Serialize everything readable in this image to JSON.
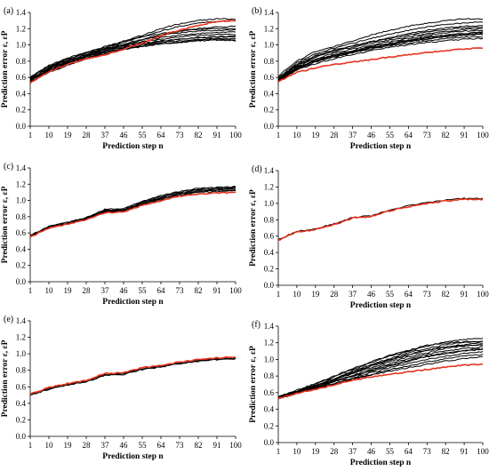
{
  "colors": {
    "highlight": "#e8321e",
    "others": "#000000",
    "axis": "#000000"
  },
  "chart_data": [
    {
      "type": "line",
      "panel_label": "(a)",
      "xlabel": "Prediction step n",
      "ylabel": "Prediction error ε, εP",
      "ylim": [
        0,
        1.4
      ],
      "yticks": [
        "0.0",
        "0.2",
        "0.4",
        "0.6",
        "0.8",
        "1.0",
        "1.2",
        "1.4"
      ],
      "xlim": [
        1,
        100
      ],
      "xticks": [
        "1",
        "10",
        "19",
        "28",
        "37",
        "46",
        "55",
        "64",
        "73",
        "82",
        "91",
        "100"
      ],
      "grid": false,
      "x": [
        1,
        10,
        19,
        28,
        37,
        46,
        55,
        64,
        73,
        82,
        91,
        100
      ],
      "highlight": [
        0.53,
        0.67,
        0.76,
        0.83,
        0.88,
        0.95,
        1.02,
        1.11,
        1.18,
        1.24,
        1.29,
        1.3
      ],
      "series": [
        {
          "values": [
            0.6,
            0.75,
            0.84,
            0.91,
            0.97,
            1.05,
            1.12,
            1.2,
            1.26,
            1.3,
            1.32,
            1.32
          ]
        },
        {
          "values": [
            0.58,
            0.72,
            0.82,
            0.9,
            0.96,
            1.03,
            1.1,
            1.17,
            1.23,
            1.27,
            1.29,
            1.3
          ]
        },
        {
          "values": [
            0.57,
            0.7,
            0.79,
            0.87,
            0.94,
            1.0,
            1.06,
            1.12,
            1.17,
            1.2,
            1.22,
            1.23
          ]
        },
        {
          "values": [
            0.59,
            0.71,
            0.8,
            0.88,
            0.95,
            1.0,
            1.04,
            1.07,
            1.1,
            1.12,
            1.13,
            1.13
          ]
        },
        {
          "values": [
            0.57,
            0.69,
            0.78,
            0.86,
            0.93,
            0.98,
            1.02,
            1.05,
            1.07,
            1.09,
            1.1,
            1.1
          ]
        },
        {
          "values": [
            0.56,
            0.68,
            0.77,
            0.85,
            0.91,
            0.96,
            1.0,
            1.03,
            1.05,
            1.07,
            1.08,
            1.08
          ]
        },
        {
          "values": [
            0.55,
            0.67,
            0.76,
            0.84,
            0.9,
            0.95,
            0.99,
            1.02,
            1.04,
            1.06,
            1.07,
            1.06
          ]
        },
        {
          "values": [
            0.54,
            0.66,
            0.75,
            0.83,
            0.89,
            0.94,
            0.98,
            1.01,
            1.03,
            1.05,
            1.06,
            1.05
          ]
        },
        {
          "values": [
            0.6,
            0.73,
            0.81,
            0.88,
            0.95,
            1.01,
            1.07,
            1.12,
            1.15,
            1.17,
            1.18,
            1.18
          ]
        },
        {
          "values": [
            0.61,
            0.74,
            0.83,
            0.9,
            0.98,
            1.04,
            1.1,
            1.14,
            1.17,
            1.19,
            1.2,
            1.2
          ]
        },
        {
          "values": [
            0.58,
            0.71,
            0.8,
            0.87,
            0.93,
            0.99,
            1.04,
            1.09,
            1.12,
            1.14,
            1.15,
            1.16
          ]
        },
        {
          "values": [
            0.56,
            0.69,
            0.78,
            0.86,
            0.92,
            0.97,
            1.01,
            1.04,
            1.07,
            1.09,
            1.1,
            1.11
          ]
        }
      ]
    },
    {
      "type": "line",
      "panel_label": "(b)",
      "xlabel": "Prediction step n",
      "ylabel": "Prediction error ε, εP",
      "ylim": [
        0,
        1.4
      ],
      "yticks": [
        "0.0",
        "0.2",
        "0.4",
        "0.6",
        "0.8",
        "1.0",
        "1.2",
        "1.4"
      ],
      "xlim": [
        1,
        100
      ],
      "xticks": [
        "1",
        "10",
        "19",
        "28",
        "37",
        "46",
        "55",
        "64",
        "73",
        "82",
        "91",
        "100"
      ],
      "grid": false,
      "x": [
        1,
        10,
        19,
        28,
        37,
        46,
        55,
        64,
        73,
        82,
        91,
        100
      ],
      "highlight": [
        0.55,
        0.66,
        0.72,
        0.76,
        0.79,
        0.82,
        0.85,
        0.88,
        0.91,
        0.93,
        0.95,
        0.96
      ],
      "series": [
        {
          "values": [
            0.62,
            0.8,
            0.92,
            0.98,
            1.05,
            1.12,
            1.18,
            1.23,
            1.27,
            1.3,
            1.32,
            1.32
          ]
        },
        {
          "values": [
            0.6,
            0.78,
            0.89,
            0.96,
            1.02,
            1.08,
            1.13,
            1.18,
            1.22,
            1.25,
            1.27,
            1.28
          ]
        },
        {
          "values": [
            0.59,
            0.76,
            0.87,
            0.94,
            0.99,
            1.04,
            1.09,
            1.14,
            1.18,
            1.21,
            1.23,
            1.24
          ]
        },
        {
          "values": [
            0.58,
            0.74,
            0.85,
            0.92,
            0.97,
            1.02,
            1.06,
            1.1,
            1.14,
            1.17,
            1.19,
            1.2
          ]
        },
        {
          "values": [
            0.57,
            0.73,
            0.83,
            0.9,
            0.95,
            1.0,
            1.04,
            1.08,
            1.12,
            1.15,
            1.17,
            1.18
          ]
        },
        {
          "values": [
            0.56,
            0.72,
            0.81,
            0.88,
            0.93,
            0.98,
            1.02,
            1.06,
            1.1,
            1.12,
            1.14,
            1.15
          ]
        },
        {
          "values": [
            0.56,
            0.71,
            0.8,
            0.86,
            0.91,
            0.96,
            1.0,
            1.04,
            1.07,
            1.1,
            1.12,
            1.13
          ]
        },
        {
          "values": [
            0.55,
            0.7,
            0.79,
            0.85,
            0.9,
            0.95,
            0.99,
            1.02,
            1.05,
            1.08,
            1.1,
            1.1
          ]
        },
        {
          "values": [
            0.57,
            0.72,
            0.81,
            0.87,
            0.92,
            0.97,
            1.01,
            1.05,
            1.08,
            1.11,
            1.13,
            1.14
          ]
        },
        {
          "values": [
            0.58,
            0.75,
            0.86,
            0.93,
            0.99,
            1.04,
            1.08,
            1.12,
            1.16,
            1.19,
            1.21,
            1.22
          ]
        },
        {
          "values": [
            0.55,
            0.69,
            0.77,
            0.83,
            0.88,
            0.93,
            0.97,
            1.0,
            1.03,
            1.05,
            1.07,
            1.08
          ]
        },
        {
          "values": [
            0.56,
            0.71,
            0.8,
            0.87,
            0.92,
            0.97,
            1.01,
            1.05,
            1.09,
            1.12,
            1.14,
            1.16
          ]
        }
      ]
    },
    {
      "type": "line",
      "panel_label": "(c)",
      "xlabel": "Prediction step n",
      "ylabel": "Prediction error ε, εP",
      "ylim": [
        0,
        1.4
      ],
      "yticks": [
        "0.0",
        "0.2",
        "0.4",
        "0.6",
        "0.8",
        "1.0",
        "1.2",
        "1.4"
      ],
      "xlim": [
        1,
        100
      ],
      "xticks": [
        "1",
        "10",
        "19",
        "28",
        "37",
        "46",
        "55",
        "64",
        "73",
        "82",
        "91",
        "100"
      ],
      "grid": false,
      "x": [
        1,
        10,
        19,
        28,
        37,
        46,
        55,
        64,
        73,
        82,
        91,
        100
      ],
      "highlight": [
        0.55,
        0.66,
        0.71,
        0.76,
        0.85,
        0.86,
        0.94,
        1.0,
        1.05,
        1.08,
        1.09,
        1.1
      ],
      "series": [
        {
          "values": [
            0.57,
            0.68,
            0.73,
            0.79,
            0.89,
            0.9,
            0.99,
            1.06,
            1.11,
            1.15,
            1.16,
            1.17
          ]
        },
        {
          "values": [
            0.56,
            0.68,
            0.72,
            0.78,
            0.88,
            0.89,
            0.98,
            1.05,
            1.1,
            1.14,
            1.15,
            1.16
          ]
        },
        {
          "values": [
            0.56,
            0.67,
            0.72,
            0.78,
            0.87,
            0.88,
            0.97,
            1.04,
            1.09,
            1.13,
            1.14,
            1.15
          ]
        },
        {
          "values": [
            0.56,
            0.67,
            0.72,
            0.77,
            0.87,
            0.88,
            0.96,
            1.03,
            1.08,
            1.12,
            1.13,
            1.14
          ]
        },
        {
          "values": [
            0.55,
            0.67,
            0.71,
            0.77,
            0.86,
            0.87,
            0.96,
            1.02,
            1.07,
            1.11,
            1.12,
            1.13
          ]
        },
        {
          "values": [
            0.55,
            0.66,
            0.71,
            0.77,
            0.86,
            0.87,
            0.95,
            1.01,
            1.06,
            1.1,
            1.11,
            1.12
          ]
        }
      ]
    },
    {
      "type": "line",
      "panel_label": "(d)",
      "xlabel": "Prediction step n",
      "ylabel": "Prediction error ε, εP",
      "ylim": [
        0,
        1.4
      ],
      "yticks": [
        "0.0",
        "0.2",
        "0.4",
        "0.6",
        "0.8",
        "1.0",
        "1.2",
        "1.4"
      ],
      "xlim": [
        1,
        100
      ],
      "xticks": [
        "1",
        "10",
        "19",
        "28",
        "37",
        "46",
        "55",
        "64",
        "73",
        "82",
        "91",
        "100"
      ],
      "grid": false,
      "x": [
        1,
        10,
        19,
        28,
        37,
        46,
        55,
        64,
        73,
        82,
        91,
        100
      ],
      "highlight": [
        0.55,
        0.65,
        0.68,
        0.74,
        0.82,
        0.84,
        0.91,
        0.96,
        1.0,
        1.03,
        1.05,
        1.05
      ],
      "series": [
        {
          "values": [
            0.56,
            0.66,
            0.69,
            0.75,
            0.83,
            0.85,
            0.92,
            0.97,
            1.01,
            1.04,
            1.06,
            1.06
          ]
        }
      ]
    },
    {
      "type": "line",
      "panel_label": "(e)",
      "xlabel": "Prediction step n",
      "ylabel": "Prediction error ε, εP",
      "ylim": [
        0,
        1.4
      ],
      "yticks": [
        "0.0",
        "0.2",
        "0.4",
        "0.6",
        "0.8",
        "1.0",
        "1.2",
        "1.4"
      ],
      "xlim": [
        1,
        100
      ],
      "xticks": [
        "1",
        "10",
        "19",
        "28",
        "37",
        "46",
        "55",
        "64",
        "73",
        "82",
        "91",
        "100"
      ],
      "grid": false,
      "x": [
        1,
        10,
        19,
        28,
        37,
        46,
        55,
        64,
        73,
        82,
        91,
        100
      ],
      "highlight": [
        0.51,
        0.59,
        0.64,
        0.68,
        0.76,
        0.77,
        0.83,
        0.86,
        0.9,
        0.93,
        0.95,
        0.96
      ],
      "series": [
        {
          "values": [
            0.51,
            0.58,
            0.63,
            0.67,
            0.75,
            0.76,
            0.82,
            0.85,
            0.89,
            0.92,
            0.94,
            0.95
          ]
        },
        {
          "values": [
            0.51,
            0.58,
            0.63,
            0.67,
            0.74,
            0.75,
            0.82,
            0.85,
            0.88,
            0.91,
            0.94,
            0.95
          ]
        },
        {
          "values": [
            0.5,
            0.57,
            0.62,
            0.66,
            0.74,
            0.75,
            0.81,
            0.84,
            0.88,
            0.91,
            0.93,
            0.94
          ]
        }
      ]
    },
    {
      "type": "line",
      "panel_label": "(f)",
      "xlabel": "Prediction step n",
      "ylabel": "Prediction error ε, εP",
      "ylim": [
        0,
        1.4
      ],
      "yticks": [
        "0.0",
        "0.2",
        "0.4",
        "0.6",
        "0.8",
        "1.0",
        "1.2",
        "1.4"
      ],
      "xlim": [
        1,
        100
      ],
      "xticks": [
        "1",
        "10",
        "19",
        "28",
        "37",
        "46",
        "55",
        "64",
        "73",
        "82",
        "91",
        "100"
      ],
      "grid": false,
      "x": [
        1,
        10,
        19,
        28,
        37,
        46,
        55,
        64,
        73,
        82,
        91,
        100
      ],
      "highlight": [
        0.53,
        0.59,
        0.64,
        0.69,
        0.75,
        0.79,
        0.82,
        0.85,
        0.88,
        0.91,
        0.93,
        0.94
      ],
      "series": [
        {
          "values": [
            0.55,
            0.62,
            0.7,
            0.79,
            0.88,
            0.96,
            1.04,
            1.1,
            1.16,
            1.21,
            1.24,
            1.25
          ]
        },
        {
          "values": [
            0.55,
            0.62,
            0.69,
            0.77,
            0.86,
            0.94,
            1.01,
            1.08,
            1.13,
            1.18,
            1.21,
            1.22
          ]
        },
        {
          "values": [
            0.54,
            0.61,
            0.68,
            0.76,
            0.84,
            0.92,
            0.99,
            1.05,
            1.11,
            1.15,
            1.18,
            1.2
          ]
        },
        {
          "values": [
            0.54,
            0.61,
            0.67,
            0.75,
            0.83,
            0.9,
            0.97,
            1.03,
            1.08,
            1.13,
            1.16,
            1.18
          ]
        },
        {
          "values": [
            0.54,
            0.6,
            0.66,
            0.74,
            0.81,
            0.88,
            0.95,
            1.01,
            1.06,
            1.1,
            1.13,
            1.15
          ]
        },
        {
          "values": [
            0.53,
            0.6,
            0.66,
            0.73,
            0.8,
            0.86,
            0.92,
            0.98,
            1.03,
            1.07,
            1.1,
            1.12
          ]
        },
        {
          "values": [
            0.53,
            0.6,
            0.65,
            0.71,
            0.78,
            0.84,
            0.9,
            0.95,
            1.0,
            1.04,
            1.07,
            1.09
          ]
        },
        {
          "values": [
            0.53,
            0.59,
            0.65,
            0.7,
            0.77,
            0.82,
            0.88,
            0.92,
            0.97,
            1.01,
            1.04,
            1.06
          ]
        },
        {
          "values": [
            0.53,
            0.59,
            0.64,
            0.7,
            0.76,
            0.81,
            0.86,
            0.9,
            0.94,
            0.98,
            1.01,
            1.03
          ]
        },
        {
          "values": [
            0.55,
            0.63,
            0.71,
            0.8,
            0.89,
            0.97,
            1.05,
            1.11,
            1.17,
            1.2,
            1.21,
            1.21
          ]
        },
        {
          "values": [
            0.54,
            0.61,
            0.68,
            0.76,
            0.85,
            0.93,
            1.0,
            1.06,
            1.11,
            1.15,
            1.17,
            1.17
          ]
        },
        {
          "values": [
            0.53,
            0.6,
            0.66,
            0.73,
            0.8,
            0.87,
            0.93,
            0.99,
            1.04,
            1.08,
            1.11,
            1.13
          ]
        }
      ]
    }
  ]
}
